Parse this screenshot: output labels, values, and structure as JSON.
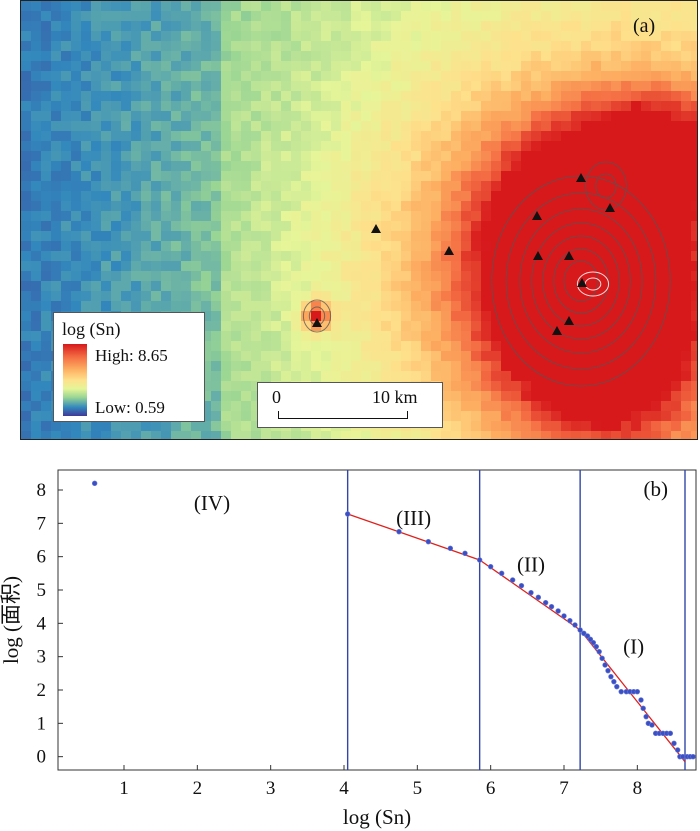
{
  "map": {
    "panel_label": "(a)",
    "legend": {
      "title": "log (Sn)",
      "high_label": "High: 8.65",
      "low_label": "Low: 0.59",
      "colors": [
        "#3f3a99",
        "#3288bd",
        "#99d594",
        "#e6f598",
        "#fee08b",
        "#fdae61",
        "#f46d43",
        "#d7191c"
      ]
    },
    "scale_bar": {
      "start_label": "0",
      "end_label": "10 km"
    },
    "marker_icon": "triangle-marker-icon"
  },
  "chart_data": {
    "type": "scatter",
    "panel_label": "(b)",
    "xlabel": "log (Sn)",
    "ylabel": "log (面积)",
    "xlim": [
      0.1,
      8.8
    ],
    "ylim": [
      -0.4,
      8.6
    ],
    "xticks": [
      1,
      2,
      3,
      4,
      5,
      6,
      7,
      8
    ],
    "yticks": [
      0,
      1,
      2,
      3,
      4,
      5,
      6,
      7,
      8
    ],
    "thresholds": [
      4.05,
      5.85,
      7.22,
      8.65
    ],
    "regions": [
      {
        "label": "(IV)",
        "x": 2.2,
        "y": 7.4
      },
      {
        "label": "(III)",
        "x": 4.95,
        "y": 6.95
      },
      {
        "label": "(II)",
        "x": 6.55,
        "y": 5.55
      },
      {
        "label": "(I)",
        "x": 7.95,
        "y": 3.1
      }
    ],
    "fit_lines": [
      {
        "x": [
          4.05,
          5.85
        ],
        "y": [
          7.28,
          5.9
        ]
      },
      {
        "x": [
          5.85,
          7.22
        ],
        "y": [
          5.9,
          3.8
        ]
      },
      {
        "x": [
          7.22,
          8.65
        ],
        "y": [
          3.8,
          -0.15
        ]
      }
    ],
    "points": [
      [
        0.6,
        8.2
      ],
      [
        4.05,
        7.28
      ],
      [
        4.75,
        6.75
      ],
      [
        5.15,
        6.45
      ],
      [
        5.45,
        6.25
      ],
      [
        5.65,
        6.1
      ],
      [
        5.85,
        5.9
      ],
      [
        6.0,
        5.7
      ],
      [
        6.15,
        5.5
      ],
      [
        6.3,
        5.3
      ],
      [
        6.42,
        5.13
      ],
      [
        6.55,
        4.92
      ],
      [
        6.65,
        4.78
      ],
      [
        6.75,
        4.62
      ],
      [
        6.83,
        4.5
      ],
      [
        6.92,
        4.37
      ],
      [
        7.0,
        4.22
      ],
      [
        7.08,
        4.08
      ],
      [
        7.15,
        3.95
      ],
      [
        7.22,
        3.8
      ],
      [
        7.27,
        3.7
      ],
      [
        7.32,
        3.62
      ],
      [
        7.36,
        3.52
      ],
      [
        7.4,
        3.42
      ],
      [
        7.44,
        3.3
      ],
      [
        7.48,
        3.15
      ],
      [
        7.52,
        2.95
      ],
      [
        7.56,
        2.75
      ],
      [
        7.6,
        2.58
      ],
      [
        7.64,
        2.4
      ],
      [
        7.68,
        2.25
      ],
      [
        7.72,
        2.1
      ],
      [
        7.78,
        1.95
      ],
      [
        7.85,
        1.95
      ],
      [
        7.9,
        1.95
      ],
      [
        7.95,
        1.95
      ],
      [
        8.0,
        1.95
      ],
      [
        8.05,
        1.7
      ],
      [
        8.08,
        1.45
      ],
      [
        8.12,
        1.2
      ],
      [
        8.15,
        1.0
      ],
      [
        8.2,
        0.95
      ],
      [
        8.25,
        0.7
      ],
      [
        8.3,
        0.7
      ],
      [
        8.35,
        0.7
      ],
      [
        8.4,
        0.7
      ],
      [
        8.45,
        0.7
      ],
      [
        8.5,
        0.4
      ],
      [
        8.55,
        0.2
      ],
      [
        8.58,
        0.0
      ],
      [
        8.62,
        0.0
      ],
      [
        8.68,
        0.0
      ],
      [
        8.72,
        0.0
      ],
      [
        8.76,
        0.0
      ]
    ]
  }
}
